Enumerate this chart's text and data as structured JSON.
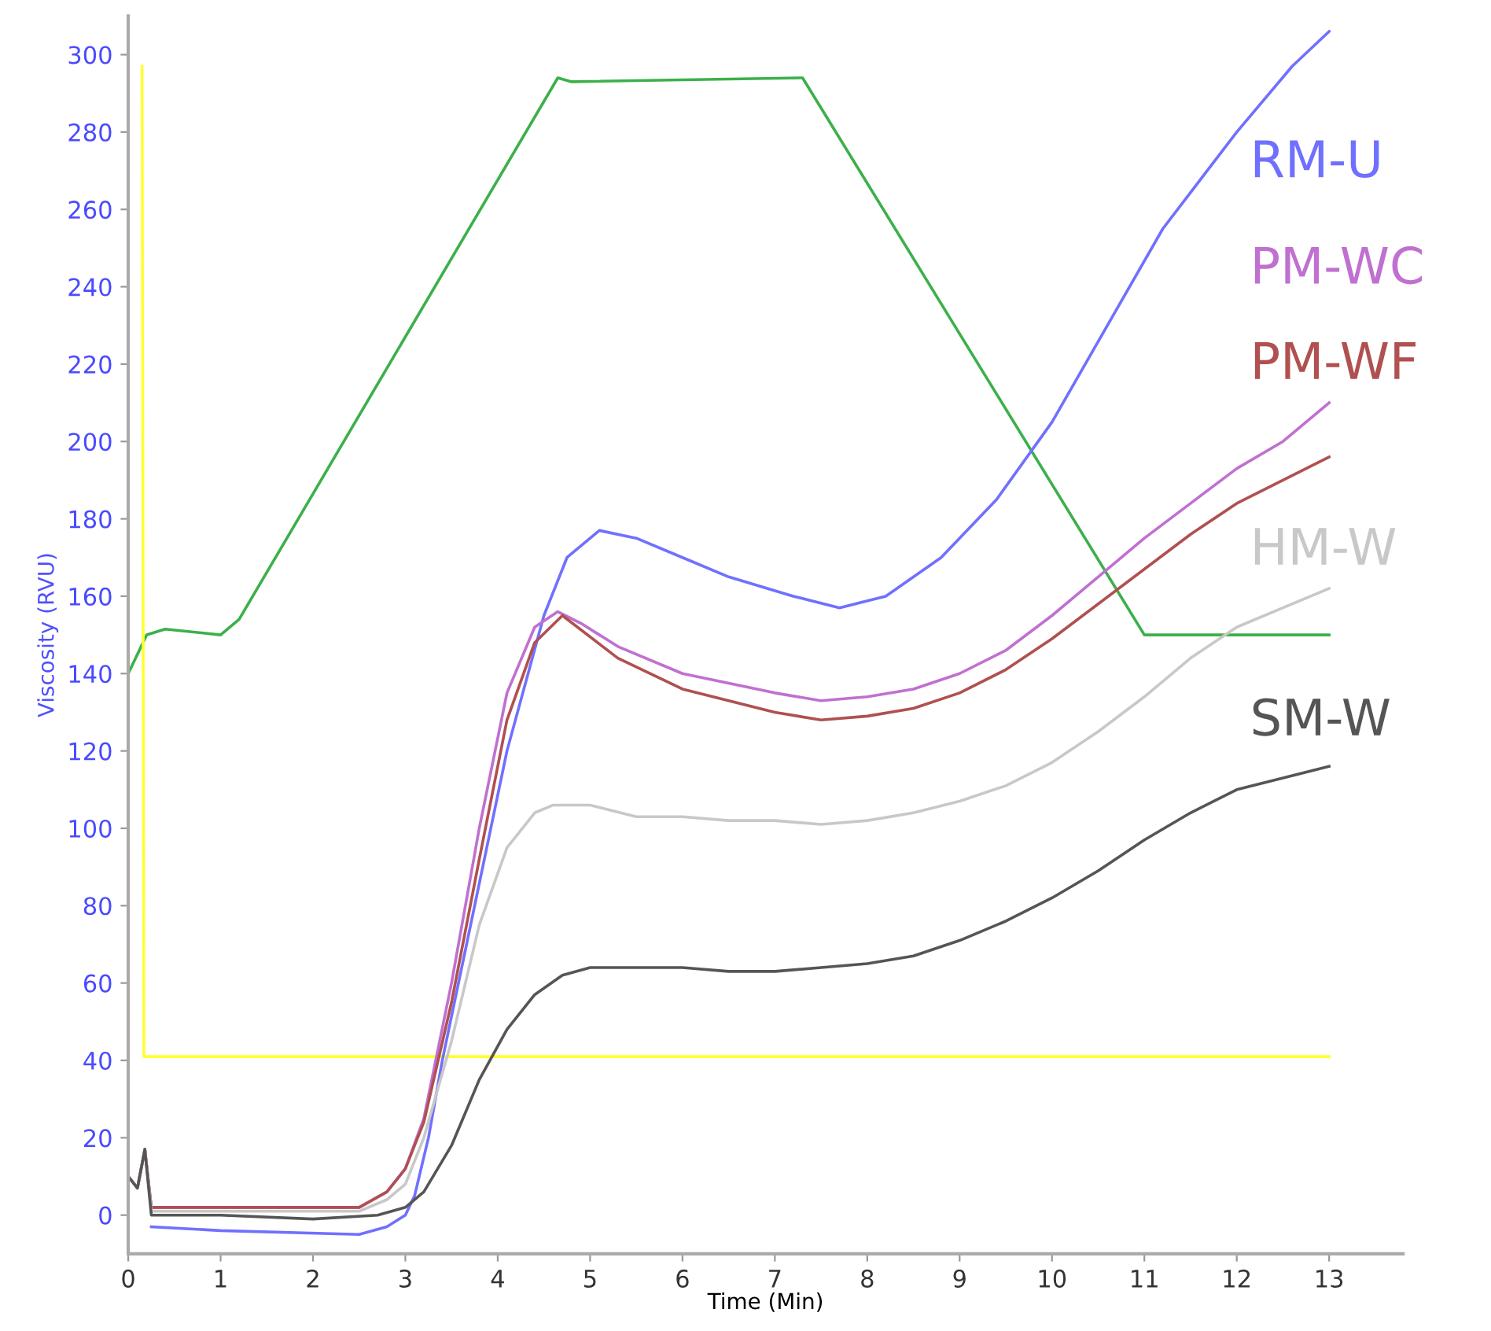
{
  "chart_data": {
    "type": "line",
    "xlabel": "Time (Min)",
    "ylabel": "Viscosity (RVU)",
    "xlim": [
      0,
      13.8
    ],
    "ylim": [
      -10,
      310
    ],
    "xticks": [
      0,
      1,
      2,
      3,
      4,
      5,
      6,
      7,
      8,
      9,
      10,
      11,
      12,
      13
    ],
    "yticks": [
      0,
      20,
      40,
      60,
      80,
      100,
      120,
      140,
      160,
      180,
      200,
      220,
      240,
      260,
      280,
      300
    ],
    "grid": false,
    "legend": false,
    "series": [
      {
        "color": "#3cb04a",
        "x": [
          0,
          0.2,
          0.4,
          1.0,
          1.2,
          4.65,
          4.8,
          7.3,
          11.0,
          13
        ],
        "values": [
          140,
          150,
          151.5,
          150,
          154,
          294,
          293,
          294,
          150,
          150
        ]
      },
      {
        "color": "#ffff30",
        "x": [
          0.15,
          0.17,
          13
        ],
        "values": [
          297,
          41,
          41
        ]
      },
      {
        "name": "RM-U",
        "color": "#7070ff",
        "x": [
          0.25,
          1,
          2.5,
          2.8,
          3.0,
          3.1,
          3.25,
          3.4,
          3.75,
          4.1,
          4.5,
          4.75,
          5.1,
          5.5,
          6.0,
          6.5,
          7.2,
          7.7,
          8.2,
          8.8,
          9.4,
          10.0,
          10.6,
          11.2,
          12.0,
          12.6,
          13
        ],
        "values": [
          -3,
          -4,
          -5,
          -3,
          0,
          5,
          20,
          40,
          80,
          120,
          155,
          170,
          177,
          175,
          170,
          165,
          160,
          157,
          160,
          170,
          185,
          205,
          230,
          255,
          280,
          297,
          306
        ]
      },
      {
        "name": "PM-WC",
        "color": "#c070d0",
        "x": [
          0,
          0.1,
          0.18,
          0.25,
          1,
          2.5,
          2.8,
          3.0,
          3.2,
          3.5,
          3.8,
          4.1,
          4.4,
          4.65,
          4.9,
          5.3,
          6.0,
          7.0,
          7.5,
          8.0,
          8.5,
          9.0,
          9.5,
          10.0,
          10.5,
          11.0,
          11.5,
          12.0,
          12.5,
          13
        ],
        "values": [
          10,
          7,
          17,
          2,
          2,
          2,
          6,
          12,
          25,
          60,
          100,
          135,
          152,
          156,
          153,
          147,
          140,
          135,
          133,
          134,
          136,
          140,
          146,
          155,
          165,
          175,
          184,
          193,
          200,
          210
        ]
      },
      {
        "name": "PM-WF",
        "color": "#b05050",
        "x": [
          0,
          0.1,
          0.18,
          0.25,
          1,
          2.5,
          2.8,
          3.0,
          3.2,
          3.5,
          3.8,
          4.1,
          4.4,
          4.7,
          5.3,
          6.0,
          7.0,
          7.5,
          8.0,
          8.5,
          9.0,
          9.5,
          10.0,
          10.5,
          11.0,
          11.5,
          12.0,
          12.5,
          13
        ],
        "values": [
          10,
          7,
          17,
          2,
          2,
          2,
          6,
          12,
          24,
          55,
          92,
          128,
          148,
          155,
          144,
          136,
          130,
          128,
          129,
          131,
          135,
          141,
          149,
          158,
          167,
          176,
          184,
          190,
          196
        ]
      },
      {
        "name": "HM-W",
        "color": "#c8c8c8",
        "x": [
          0,
          0.1,
          0.18,
          0.25,
          2.5,
          2.8,
          3.0,
          3.2,
          3.5,
          3.8,
          4.1,
          4.4,
          4.6,
          5.0,
          5.5,
          6.0,
          6.5,
          7.0,
          7.5,
          8.0,
          8.5,
          9.0,
          9.5,
          10.0,
          10.5,
          11.0,
          11.5,
          12.0,
          12.5,
          13
        ],
        "values": [
          10,
          7,
          17,
          1,
          1,
          4,
          8,
          20,
          45,
          75,
          95,
          104,
          106,
          106,
          103,
          103,
          102,
          102,
          101,
          102,
          104,
          107,
          111,
          117,
          125,
          134,
          144,
          152,
          157,
          162
        ]
      },
      {
        "name": "SM-W",
        "color": "#555555",
        "x": [
          0,
          0.1,
          0.18,
          0.25,
          1,
          2,
          2.7,
          3.0,
          3.2,
          3.5,
          3.8,
          4.1,
          4.4,
          4.7,
          5.0,
          5.5,
          6.0,
          6.5,
          7.0,
          7.5,
          8.0,
          8.5,
          9.0,
          9.5,
          10.0,
          10.5,
          11.0,
          11.5,
          12.0,
          12.5,
          13
        ],
        "values": [
          10,
          7,
          17,
          0,
          0,
          -1,
          0,
          2,
          6,
          18,
          35,
          48,
          57,
          62,
          64,
          64,
          64,
          63,
          63,
          64,
          65,
          67,
          71,
          76,
          82,
          89,
          97,
          104,
          110,
          113,
          116
        ]
      }
    ]
  }
}
